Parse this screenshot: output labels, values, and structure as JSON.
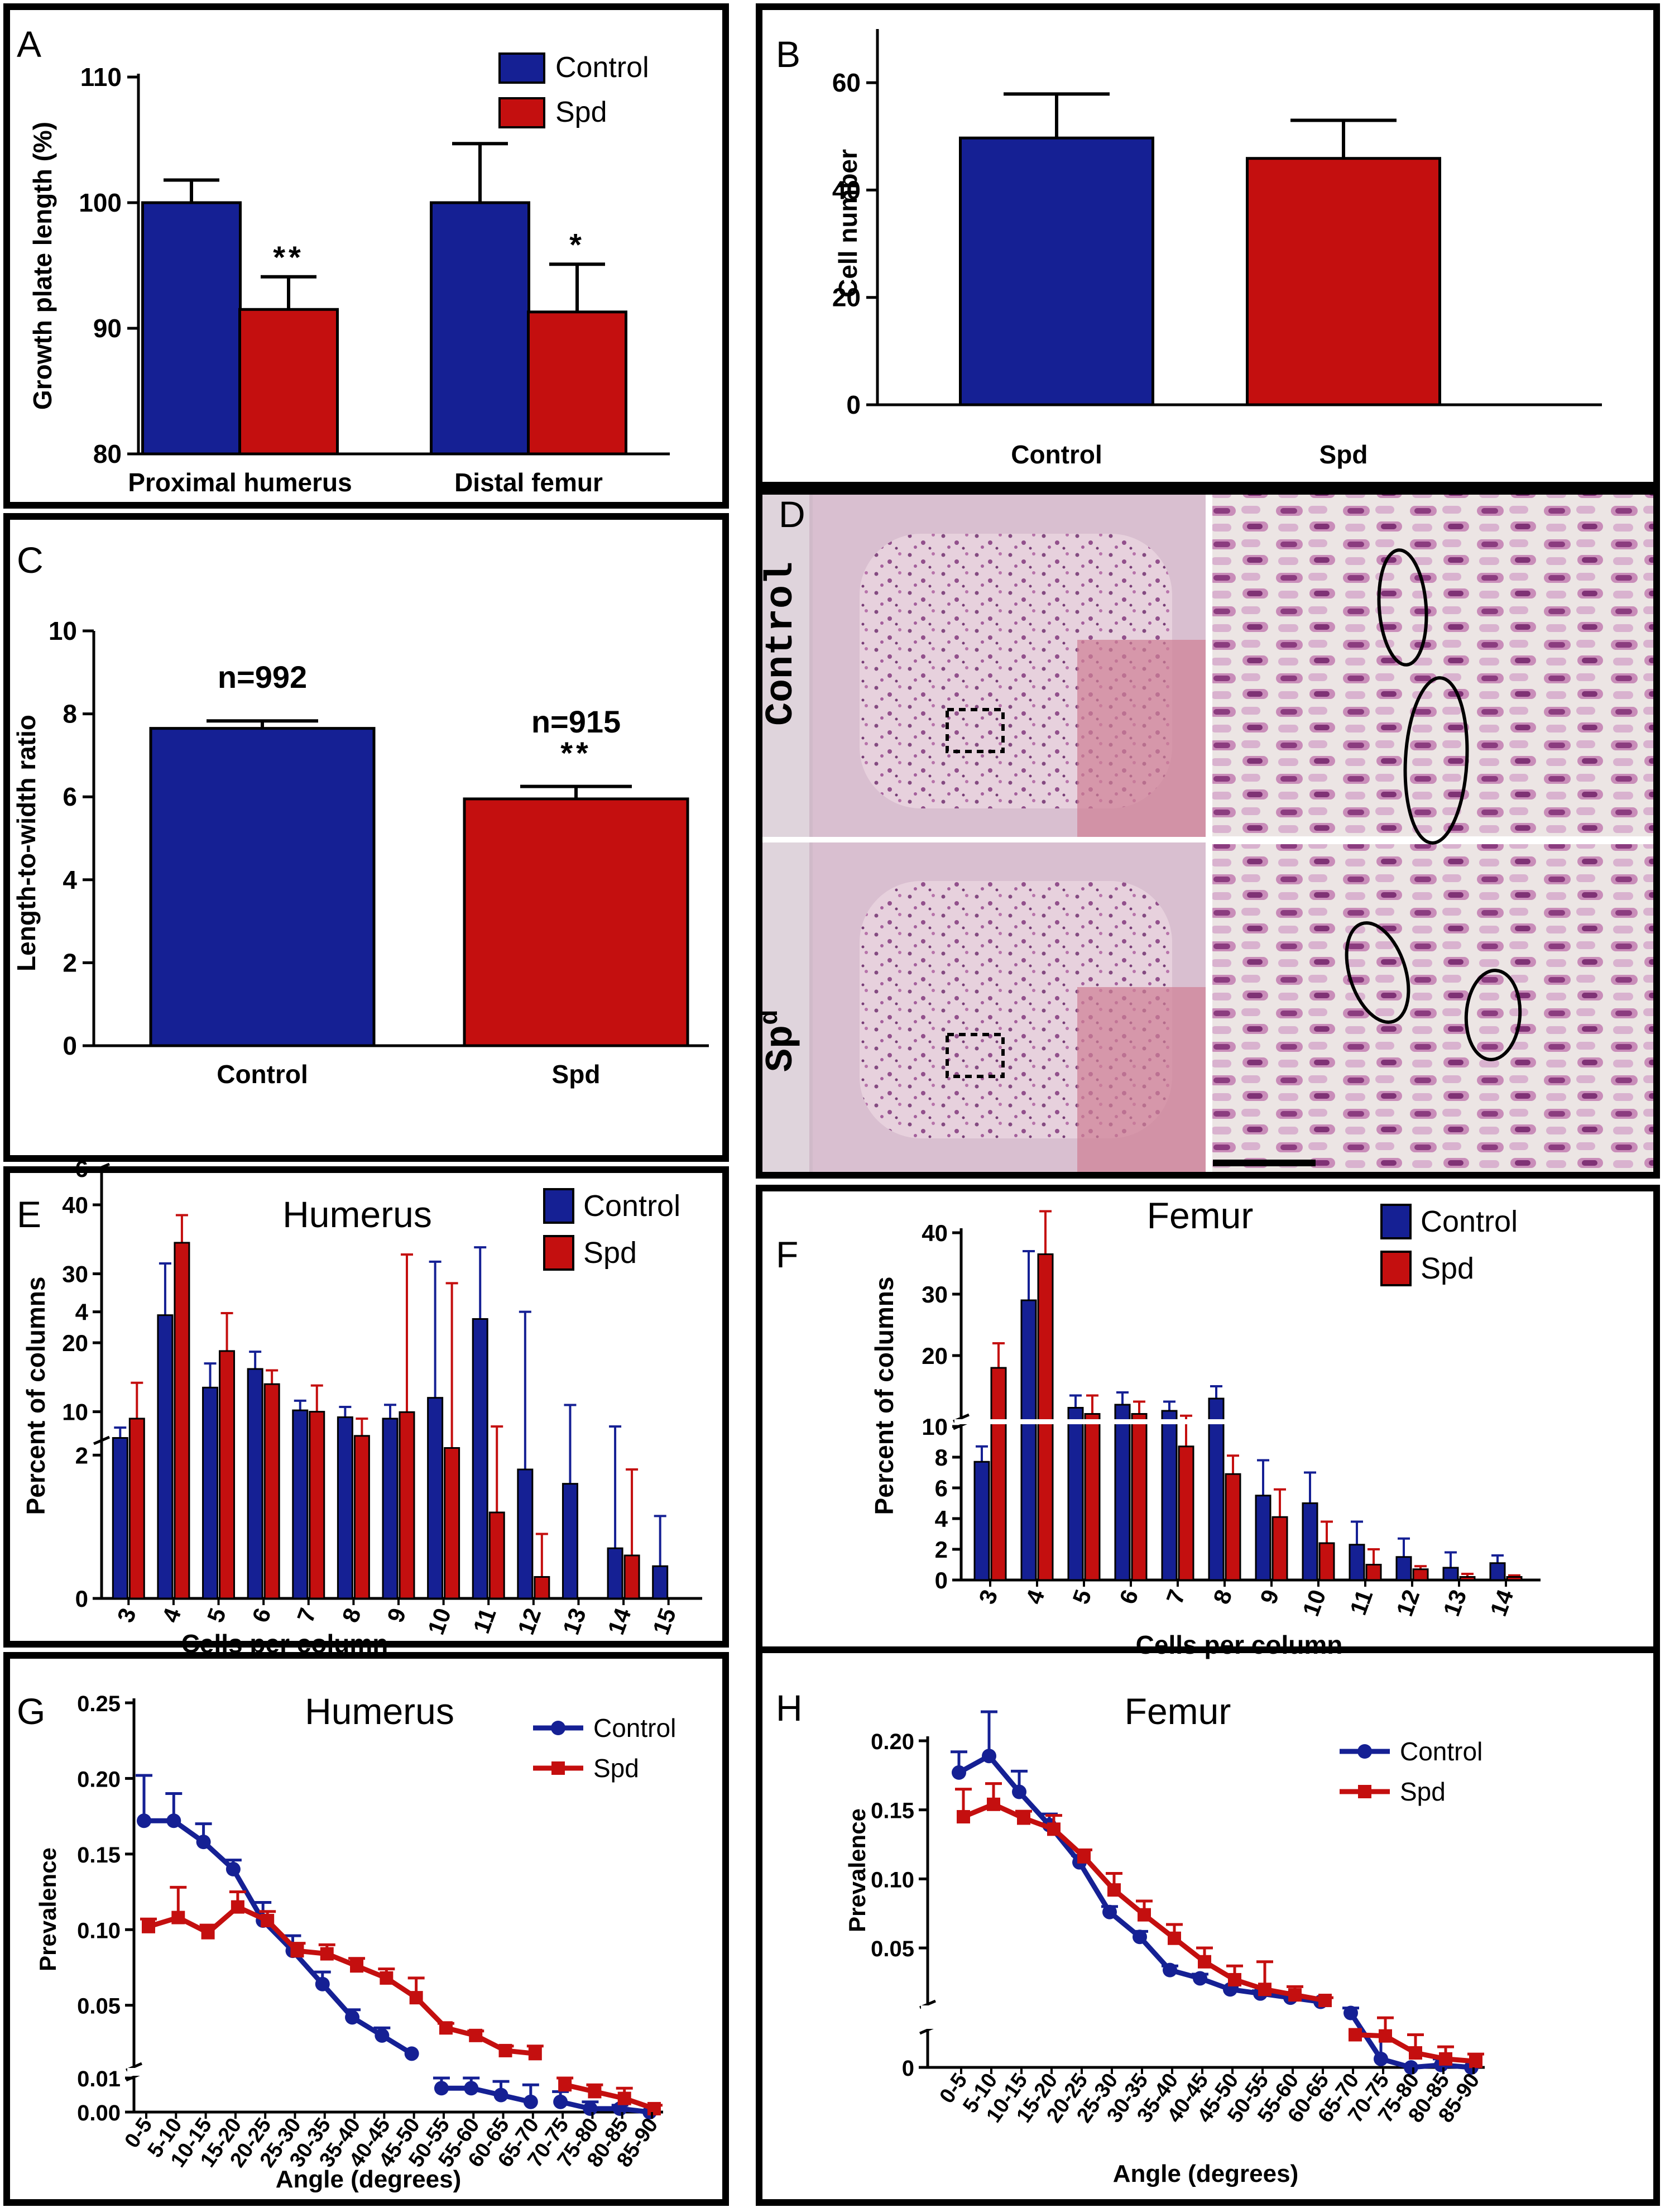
{
  "colors": {
    "control": "#152094",
    "spd": "#c40f0f"
  },
  "chart_data": [
    {
      "panel": "A",
      "type": "bar",
      "categories": [
        "Proximal humerus",
        "Distal femur"
      ],
      "series": [
        {
          "name": "Control",
          "values": [
            100.0,
            100.0
          ],
          "errors": [
            1.8,
            4.7
          ]
        },
        {
          "name": "Spd",
          "values": [
            91.5,
            91.3
          ],
          "errors": [
            2.6,
            3.8
          ]
        }
      ],
      "significance": {
        "Spd": [
          "**",
          "*"
        ]
      },
      "ylabel": "Growth plate length (%)",
      "xlabel": "",
      "ylim": [
        80,
        110
      ],
      "yticks": [
        80,
        90,
        100,
        110
      ],
      "legend": "top-right",
      "grid": false
    },
    {
      "panel": "B",
      "type": "bar",
      "categories": [
        "Control",
        "Spd"
      ],
      "values": [
        49.7,
        45.9
      ],
      "errors": [
        8.2,
        7.1
      ],
      "ylabel": "Cell number",
      "xlabel": "",
      "ylim": [
        0,
        70
      ],
      "yticks": [
        0,
        20,
        40,
        60
      ],
      "grid": false
    },
    {
      "panel": "C",
      "type": "bar",
      "categories": [
        "Control",
        "Spd"
      ],
      "values": [
        7.65,
        5.95
      ],
      "errors": [
        0.18,
        0.3
      ],
      "bar_labels": [
        "n=992",
        "n=915"
      ],
      "significance": [
        "",
        "**"
      ],
      "ylabel": "Length-to-width ratio",
      "xlabel": "",
      "ylim": [
        0,
        10
      ],
      "yticks": [
        0,
        2,
        4,
        6,
        8,
        10
      ],
      "grid": false
    },
    {
      "panel": "E",
      "type": "bar",
      "title": "Humerus",
      "categories": [
        "3",
        "4",
        "5",
        "6",
        "7",
        "8",
        "9",
        "10",
        "11",
        "12",
        "13",
        "14",
        "15"
      ],
      "series": [
        {
          "name": "Control",
          "values": [
            6.2,
            24.0,
            13.5,
            16.2,
            10.2,
            9.2,
            9.0,
            2.8,
            3.9,
            1.8,
            1.6,
            0.7,
            0.45
          ],
          "errors": [
            1.5,
            7.5,
            3.5,
            2.5,
            1.4,
            1.5,
            2.0,
            1.9,
            1.0,
            2.2,
            1.1,
            1.7,
            0.7
          ]
        },
        {
          "name": "Spd",
          "values": [
            9.0,
            34.5,
            18.8,
            14.0,
            10.0,
            6.5,
            2.6,
            2.1,
            1.2,
            0.3,
            0.0,
            0.6,
            0.0
          ],
          "errors": [
            5.2,
            4.0,
            5.5,
            2.0,
            3.8,
            2.5,
            2.2,
            2.3,
            1.2,
            0.6,
            0.0,
            1.2,
            0.0
          ]
        }
      ],
      "xlabel": "Cells per column",
      "ylabel": "Percent of columns",
      "y_axis_break": {
        "lower": [
          0,
          6
        ],
        "upper": [
          6,
          40
        ]
      },
      "yticks": [
        0,
        2,
        4,
        6,
        10,
        20,
        30,
        40
      ],
      "legend": "top-right",
      "grid": false
    },
    {
      "panel": "F",
      "type": "bar",
      "title": "Femur",
      "categories": [
        "3",
        "4",
        "5",
        "6",
        "7",
        "8",
        "9",
        "10",
        "11",
        "12",
        "13",
        "14"
      ],
      "series": [
        {
          "name": "Control",
          "values": [
            7.7,
            29.0,
            11.5,
            12.0,
            11.0,
            13.0,
            5.5,
            5.0,
            2.3,
            1.5,
            0.8,
            1.1
          ],
          "errors": [
            1.0,
            8.0,
            2.0,
            2.0,
            1.5,
            2.0,
            2.3,
            2.0,
            1.5,
            1.2,
            1.0,
            0.5
          ]
        },
        {
          "name": "Spd",
          "values": [
            18.0,
            36.5,
            10.5,
            10.5,
            8.7,
            6.9,
            4.1,
            2.4,
            1.0,
            0.7,
            0.2,
            0.2
          ],
          "errors": [
            4.0,
            7.0,
            3.0,
            2.0,
            1.5,
            1.2,
            1.8,
            1.4,
            1.0,
            0.2,
            0.2,
            0.1
          ]
        }
      ],
      "xlabel": "Cells per column",
      "ylabel": "Percent of columns",
      "y_axis_break": {
        "lower": [
          0,
          10
        ],
        "upper": [
          10,
          40
        ]
      },
      "yticks": [
        0,
        2,
        4,
        6,
        8,
        10,
        20,
        30,
        40
      ],
      "legend": "top-right",
      "grid": false
    },
    {
      "panel": "G",
      "type": "line",
      "title": "Humerus",
      "categories": [
        "0-5",
        "5-10",
        "10-15",
        "15-20",
        "20-25",
        "25-30",
        "30-35",
        "35-40",
        "40-45",
        "45-50",
        "50-55",
        "55-60",
        "60-65",
        "65-70",
        "70-75",
        "75-80",
        "80-85",
        "85-90"
      ],
      "series": [
        {
          "name": "Control",
          "values": [
            0.172,
            0.172,
            0.158,
            0.14,
            0.106,
            0.086,
            0.064,
            0.042,
            0.03,
            0.018,
            0.007,
            0.007,
            0.005,
            0.003,
            0.003,
            0.001,
            0.001,
            0.0
          ],
          "errors": [
            0.03,
            0.018,
            0.012,
            0.006,
            0.012,
            0.01,
            0.008,
            0.005,
            0.005,
            0.0,
            0.003,
            0.003,
            0.004,
            0.005,
            0.003,
            0.002,
            0.001,
            0.0
          ]
        },
        {
          "name": "Spd",
          "values": [
            0.102,
            0.108,
            0.098,
            0.115,
            0.106,
            0.086,
            0.084,
            0.076,
            0.068,
            0.055,
            0.035,
            0.03,
            0.02,
            0.018,
            0.008,
            0.006,
            0.004,
            0.001
          ],
          "errors": [
            0.005,
            0.02,
            0.005,
            0.01,
            0.006,
            0.005,
            0.006,
            0.005,
            0.006,
            0.013,
            0.003,
            0.003,
            0.003,
            0.005,
            0.002,
            0.002,
            0.003,
            0.001
          ]
        }
      ],
      "xlabel": "Angle (degrees)",
      "ylabel": "Prevalence",
      "y_axis_break": {
        "lower": [
          0,
          0.01
        ],
        "upper": [
          0.01,
          0.25
        ]
      },
      "yticks": [
        "0.00",
        "0.01",
        "0.05",
        "0.10",
        "0.15",
        "0.20",
        "0.25"
      ],
      "legend": "top-right",
      "grid": false
    },
    {
      "panel": "H",
      "type": "line",
      "title": "Femur",
      "categories": [
        "0-5",
        "5-10",
        "10-15",
        "15-20",
        "20-25",
        "25-30",
        "30-35",
        "35-40",
        "40-45",
        "45-50",
        "50-55",
        "55-60",
        "60-65",
        "65-70",
        "70-75",
        "75-80",
        "80-85",
        "85-90"
      ],
      "series": [
        {
          "name": "Control",
          "values": [
            0.177,
            0.189,
            0.163,
            0.139,
            0.112,
            0.076,
            0.058,
            0.034,
            0.028,
            0.02,
            0.017,
            0.014,
            0.011,
            0.0045,
            0.0007,
            0.0,
            0.0002,
            0.0
          ],
          "errors": [
            0.015,
            0.032,
            0.015,
            0.008,
            0.005,
            0.004,
            0.004,
            0.003,
            0.003,
            0.002,
            0.002,
            0.002,
            0.002,
            0.002,
            0.002,
            0.0,
            0.0005,
            0.0
          ]
        },
        {
          "name": "Spd",
          "values": [
            0.145,
            0.154,
            0.144,
            0.136,
            0.116,
            0.092,
            0.074,
            0.057,
            0.04,
            0.027,
            0.02,
            0.016,
            0.012,
            0.0027,
            0.0026,
            0.0012,
            0.0007,
            0.0005
          ],
          "errors": [
            0.02,
            0.015,
            0.005,
            0.01,
            0.005,
            0.012,
            0.01,
            0.01,
            0.01,
            0.01,
            0.02,
            0.006,
            0.002,
            0.0,
            0.0015,
            0.0015,
            0.001,
            0.0006
          ]
        }
      ],
      "xlabel": "Angle (degrees)",
      "ylabel": "Prevalence",
      "y_axis_break": {
        "lower": [
          0,
          0.003
        ],
        "upper": [
          0.01,
          0.2
        ]
      },
      "yticks": [
        "0",
        "0.05",
        "0.10",
        "0.15",
        "0.20"
      ],
      "legend": "top-right",
      "grid": false
    }
  ],
  "panel_d": {
    "letter": "D",
    "row_labels": [
      "Control",
      "Sp"
    ],
    "row_label_superscript": "d"
  },
  "panel_letters": [
    "A",
    "B",
    "C",
    "D",
    "E",
    "F",
    "G",
    "H"
  ]
}
